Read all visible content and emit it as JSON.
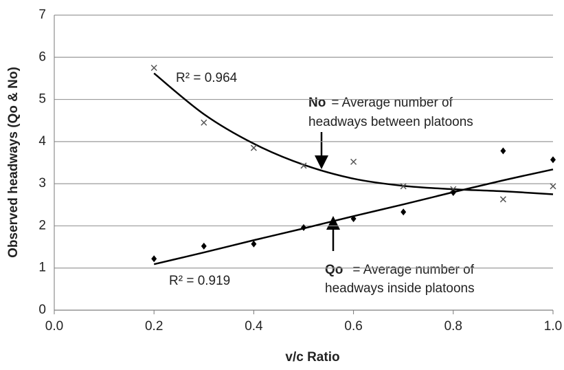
{
  "chart_data": {
    "type": "scatter",
    "x_label": "v/c Ratio",
    "y_label": "Observed headways (Qo & No)",
    "x": [
      0.2,
      0.3,
      0.4,
      0.5,
      0.6,
      0.7,
      0.8,
      0.9,
      1.0
    ],
    "series": [
      {
        "marker": "x",
        "color": "#555555",
        "values": [
          5.75,
          4.45,
          3.85,
          3.43,
          3.52,
          2.94,
          2.87,
          2.63,
          2.94
        ],
        "trend": [
          5.62,
          4.65,
          3.95,
          3.45,
          3.12,
          2.95,
          2.87,
          2.82,
          2.75
        ]
      },
      {
        "marker": "diamond",
        "color": "#000000",
        "values": [
          1.22,
          1.52,
          1.57,
          1.96,
          2.17,
          2.33,
          2.79,
          3.78,
          3.57
        ],
        "trend": [
          1.09,
          1.37,
          1.66,
          1.94,
          2.23,
          2.51,
          2.8,
          3.08,
          3.34
        ]
      }
    ],
    "r_squared_labels": [
      "R² = 0.964",
      "R² = 0.919"
    ],
    "notes": [
      {
        "key": "No",
        "line1": "= Average number of",
        "line2": "headways between platoons"
      },
      {
        "key": "Qo",
        "line1": "= Average number of",
        "line2": "headways inside platoons"
      }
    ],
    "xlim": [
      0,
      1.0
    ],
    "xticks": [
      {
        "value": 0,
        "label": "0.0"
      },
      0.2,
      0.4,
      0.6,
      0.8,
      {
        "value": 1,
        "label": "1.0"
      }
    ],
    "ylim": [
      0,
      7
    ],
    "yticks": [
      0,
      1,
      2,
      3,
      4,
      5,
      6,
      7
    ],
    "grid": true
  }
}
